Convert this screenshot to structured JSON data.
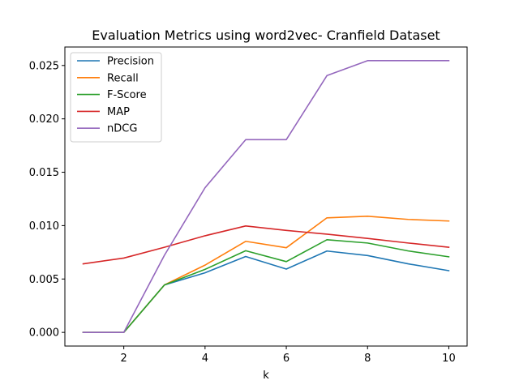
{
  "chart_data": {
    "type": "line",
    "title": "Evaluation Metrics using word2vec- Cranfield Dataset",
    "xlabel": "k",
    "ylabel": "",
    "x": [
      1,
      2,
      3,
      4,
      5,
      6,
      7,
      8,
      9,
      10
    ],
    "xlim": [
      0.55,
      10.45
    ],
    "ylim": [
      -0.00128,
      0.02673
    ],
    "xticks": [
      2,
      4,
      6,
      8,
      10
    ],
    "yticks": [
      0.0,
      0.005,
      0.01,
      0.015,
      0.02,
      0.025
    ],
    "ytick_labels": [
      "0.000",
      "0.005",
      "0.010",
      "0.015",
      "0.020",
      "0.025"
    ],
    "grid": false,
    "legend_position": "top-left",
    "series": [
      {
        "name": "Precision",
        "color": "#1f77b4",
        "values": [
          0.0,
          0.0,
          0.00444,
          0.00558,
          0.00711,
          0.00593,
          0.00762,
          0.0072,
          0.00642,
          0.00578
        ]
      },
      {
        "name": "Recall",
        "color": "#ff7f0e",
        "values": [
          0.0,
          0.0,
          0.00444,
          0.0063,
          0.00853,
          0.00793,
          0.01073,
          0.01088,
          0.01058,
          0.01043
        ]
      },
      {
        "name": "F-Score",
        "color": "#2ca02c",
        "values": [
          0.0,
          0.0,
          0.00444,
          0.0059,
          0.00765,
          0.00663,
          0.00868,
          0.00837,
          0.00763,
          0.00708
        ]
      },
      {
        "name": "MAP",
        "color": "#d62728",
        "values": [
          0.00642,
          0.00696,
          0.00797,
          0.00905,
          0.00997,
          0.00955,
          0.0092,
          0.0088,
          0.00837,
          0.00797
        ]
      },
      {
        "name": "nDCG",
        "color": "#9467bd",
        "values": [
          0.0,
          0.0,
          0.00722,
          0.01355,
          0.01805,
          0.01805,
          0.02405,
          0.02545,
          0.02545,
          0.02545
        ]
      }
    ]
  }
}
